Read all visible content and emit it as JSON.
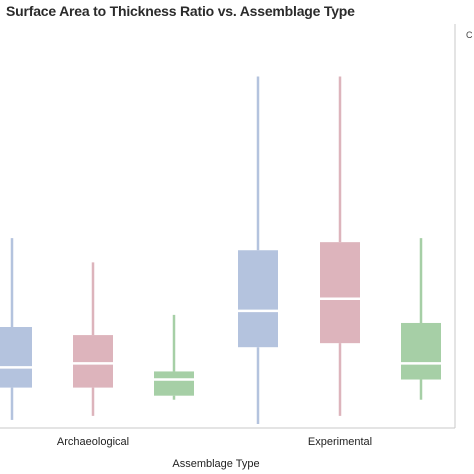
{
  "chart_data": {
    "type": "boxplot",
    "title": "Surface Area to Thickness Ratio vs. Assemblage Type",
    "corner_text": "C",
    "xlabel": "Assemblage Type",
    "ylabel": "",
    "categories": [
      "Archaeological",
      "Experimental"
    ],
    "grid": false,
    "legend": "none",
    "ylim": [
      0,
      100
    ],
    "boxes": [
      {
        "category": "Archaeological",
        "color": "#b4c3de",
        "min": 2,
        "q1": 10,
        "median": 15,
        "q3": 25,
        "max": 47
      },
      {
        "category": "Archaeological",
        "color": "#ddb4bc",
        "min": 3,
        "q1": 10,
        "median": 16,
        "q3": 23,
        "max": 41
      },
      {
        "category": "Archaeological",
        "color": "#a6cfa6",
        "min": 7,
        "q1": 8,
        "median": 12,
        "q3": 14,
        "max": 28
      },
      {
        "category": "Experimental",
        "color": "#b4c3de",
        "min": 1,
        "q1": 20,
        "median": 29,
        "q3": 44,
        "max": 87
      },
      {
        "category": "Experimental",
        "color": "#ddb4bc",
        "min": 3,
        "q1": 21,
        "median": 32,
        "q3": 46,
        "max": 87
      },
      {
        "category": "Experimental",
        "color": "#a6cfa6",
        "min": 7,
        "q1": 12,
        "median": 16,
        "q3": 26,
        "max": 47
      }
    ]
  }
}
